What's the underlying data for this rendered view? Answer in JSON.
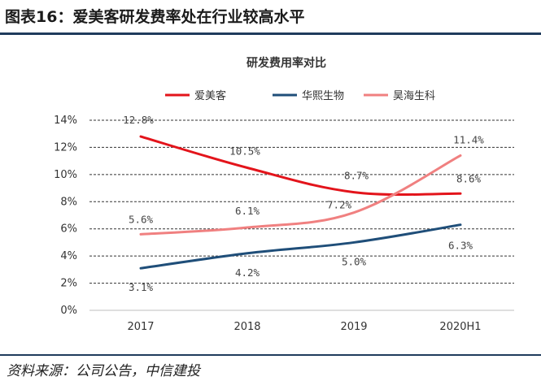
{
  "header": {
    "title": "图表16：爱美客研发费率处在行业较高水平"
  },
  "source": {
    "text": "资料来源：公司公告，中信建投"
  },
  "chart_data": {
    "type": "line",
    "title": "研发费用率对比",
    "categories": [
      "2017",
      "2018",
      "2019",
      "2020H1"
    ],
    "ylim": [
      0,
      14
    ],
    "yticks": [
      "0%",
      "2%",
      "4%",
      "6%",
      "8%",
      "10%",
      "12%",
      "14%"
    ],
    "grid": true,
    "legend_position": "top",
    "series": [
      {
        "name": "爱美客",
        "color": "#e3141b",
        "values": [
          12.8,
          10.5,
          8.7,
          8.6
        ],
        "labels": [
          "12.8%",
          "10.5%",
          "8.7%",
          "8.6%"
        ]
      },
      {
        "name": "华熙生物",
        "color": "#1f4e79",
        "values": [
          3.1,
          4.2,
          5.0,
          6.3
        ],
        "labels": [
          "3.1%",
          "4.2%",
          "5.0%",
          "6.3%"
        ]
      },
      {
        "name": "昊海生科",
        "color": "#f08080",
        "values": [
          5.6,
          6.1,
          7.2,
          11.4
        ],
        "labels": [
          "5.6%",
          "6.1%",
          "7.2%",
          "11.4%"
        ]
      }
    ]
  }
}
